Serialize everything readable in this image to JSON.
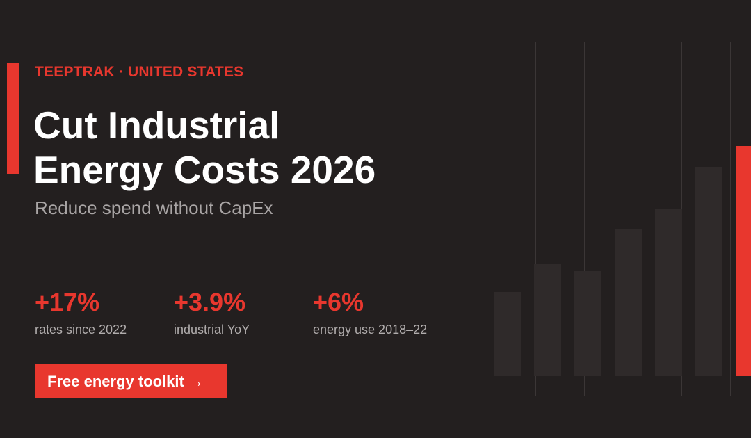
{
  "header": {
    "eyebrow": "TEEPTRAK · UNITED STATES",
    "title_lines": [
      "Cut Industrial",
      "Energy Costs 2026"
    ],
    "subtitle": "Reduce spend without CapEx"
  },
  "stats": [
    {
      "value": "+17%",
      "label": "rates since 2022"
    },
    {
      "value": "+3.9%",
      "label": "industrial YoY"
    },
    {
      "value": "+6%",
      "label": "energy use 2018–22"
    }
  ],
  "cta": "Free energy toolkit →"
}
